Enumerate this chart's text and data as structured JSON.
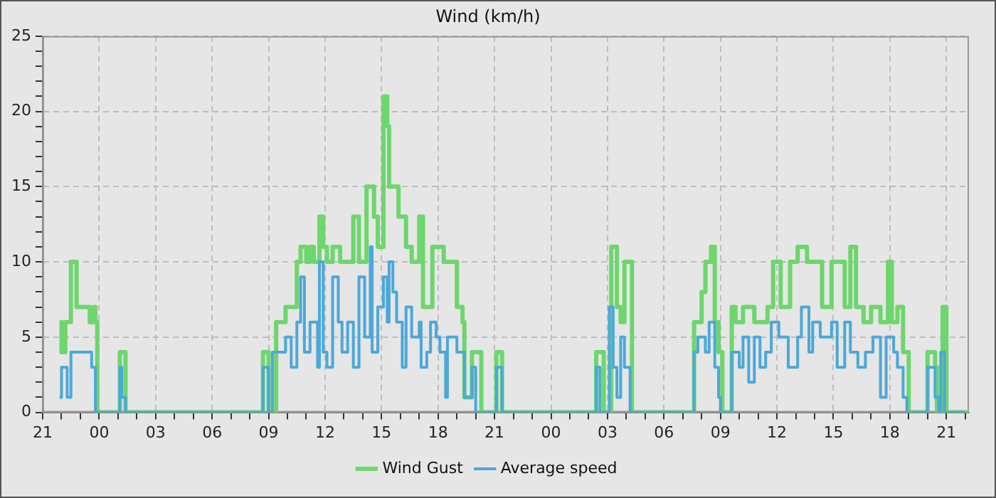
{
  "chart_data": {
    "type": "step",
    "title": "Wind (km/h)",
    "xlim": [
      "2000-01-01T21:00",
      "2000-01-03T22:12"
    ],
    "xticks": [
      {
        "value": "2000-01-01T21:00",
        "label": "21"
      },
      {
        "value": "2000-01-01T22:00",
        "label": null
      },
      {
        "value": "2000-01-01T23:00",
        "label": null
      },
      {
        "value": "2000-01-02T00:00",
        "label": "00"
      },
      {
        "value": "2000-01-02T01:00",
        "label": null
      },
      {
        "value": "2000-01-02T02:00",
        "label": null
      },
      {
        "value": "2000-01-02T03:00",
        "label": "03"
      },
      {
        "value": "2000-01-02T04:00",
        "label": null
      },
      {
        "value": "2000-01-02T05:00",
        "label": null
      },
      {
        "value": "2000-01-02T06:00",
        "label": "06"
      },
      {
        "value": "2000-01-02T07:00",
        "label": null
      },
      {
        "value": "2000-01-02T08:00",
        "label": null
      },
      {
        "value": "2000-01-02T09:00",
        "label": "09"
      },
      {
        "value": "2000-01-02T10:00",
        "label": null
      },
      {
        "value": "2000-01-02T11:00",
        "label": null
      },
      {
        "value": "2000-01-02T12:00",
        "label": "12"
      },
      {
        "value": "2000-01-02T13:00",
        "label": null
      },
      {
        "value": "2000-01-02T14:00",
        "label": null
      },
      {
        "value": "2000-01-02T15:00",
        "label": "15"
      },
      {
        "value": "2000-01-02T16:00",
        "label": null
      },
      {
        "value": "2000-01-02T17:00",
        "label": null
      },
      {
        "value": "2000-01-02T18:00",
        "label": "18"
      },
      {
        "value": "2000-01-02T19:00",
        "label": null
      },
      {
        "value": "2000-01-02T20:00",
        "label": null
      },
      {
        "value": "2000-01-02T21:00",
        "label": "21"
      },
      {
        "value": "2000-01-02T22:00",
        "label": null
      },
      {
        "value": "2000-01-02T23:00",
        "label": null
      },
      {
        "value": "2000-01-03T00:00",
        "label": "00"
      },
      {
        "value": "2000-01-03T01:00",
        "label": null
      },
      {
        "value": "2000-01-03T02:00",
        "label": null
      },
      {
        "value": "2000-01-03T03:00",
        "label": "03"
      },
      {
        "value": "2000-01-03T04:00",
        "label": null
      },
      {
        "value": "2000-01-03T05:00",
        "label": null
      },
      {
        "value": "2000-01-03T06:00",
        "label": "06"
      },
      {
        "value": "2000-01-03T07:00",
        "label": null
      },
      {
        "value": "2000-01-03T08:00",
        "label": null
      },
      {
        "value": "2000-01-03T09:00",
        "label": "09"
      },
      {
        "value": "2000-01-03T10:00",
        "label": null
      },
      {
        "value": "2000-01-03T11:00",
        "label": null
      },
      {
        "value": "2000-01-03T12:00",
        "label": "12"
      },
      {
        "value": "2000-01-03T13:00",
        "label": null
      },
      {
        "value": "2000-01-03T14:00",
        "label": null
      },
      {
        "value": "2000-01-03T15:00",
        "label": "15"
      },
      {
        "value": "2000-01-03T16:00",
        "label": null
      },
      {
        "value": "2000-01-03T17:00",
        "label": null
      },
      {
        "value": "2000-01-03T18:00",
        "label": "18"
      },
      {
        "value": "2000-01-03T19:00",
        "label": null
      },
      {
        "value": "2000-01-03T20:00",
        "label": null
      },
      {
        "value": "2000-01-03T21:00",
        "label": "21"
      },
      {
        "value": "2000-01-03T22:00",
        "label": null
      }
    ],
    "ylim": [
      0,
      25
    ],
    "yticks": [
      0,
      {
        "value": 1,
        "label": null
      },
      {
        "value": 2,
        "label": null
      },
      {
        "value": 3,
        "label": null
      },
      {
        "value": 4,
        "label": null
      },
      5,
      {
        "value": 6,
        "label": null
      },
      {
        "value": 7,
        "label": null
      },
      {
        "value": 8,
        "label": null
      },
      {
        "value": 9,
        "label": null
      },
      10,
      {
        "value": 11,
        "label": null
      },
      {
        "value": 12,
        "label": null
      },
      {
        "value": 13,
        "label": null
      },
      {
        "value": 14,
        "label": null
      },
      15,
      {
        "value": 16,
        "label": null
      },
      {
        "value": 17,
        "label": null
      },
      {
        "value": 18,
        "label": null
      },
      {
        "value": 19,
        "label": null
      },
      20,
      {
        "value": 21,
        "label": null
      },
      {
        "value": 22,
        "label": null
      },
      {
        "value": 23,
        "label": null
      },
      {
        "value": 24,
        "label": null
      },
      25
    ],
    "grid": true,
    "legend": "bottom",
    "line_style": "solid",
    "marker": "none",
    "series": [
      {
        "name": "Wind Gust",
        "color": "#6dd66d",
        "x": [
          "2000-01-01T21:54",
          "2000-01-01T22:00",
          "2000-01-01T22:12",
          "2000-01-01T22:30",
          "2000-01-01T22:48",
          "2000-01-01T23:30",
          "2000-01-01T23:42",
          "2000-01-01T23:48",
          "2000-01-01T23:54",
          "2000-01-02T01:06",
          "2000-01-02T01:24",
          "2000-01-02T08:42",
          "2000-01-02T09:00",
          "2000-01-02T09:24",
          "2000-01-02T09:54",
          "2000-01-02T10:30",
          "2000-01-02T10:42",
          "2000-01-02T11:00",
          "2000-01-02T11:12",
          "2000-01-02T11:24",
          "2000-01-02T11:42",
          "2000-01-02T11:54",
          "2000-01-02T12:06",
          "2000-01-02T12:24",
          "2000-01-02T12:48",
          "2000-01-02T13:30",
          "2000-01-02T13:48",
          "2000-01-02T14:12",
          "2000-01-02T14:36",
          "2000-01-02T14:48",
          "2000-01-02T15:06",
          "2000-01-02T15:18",
          "2000-01-02T15:24",
          "2000-01-02T15:54",
          "2000-01-02T16:18",
          "2000-01-02T16:36",
          "2000-01-02T17:00",
          "2000-01-02T17:12",
          "2000-01-02T17:42",
          "2000-01-02T18:18",
          "2000-01-02T19:00",
          "2000-01-02T19:18",
          "2000-01-02T19:24",
          "2000-01-02T19:48",
          "2000-01-02T20:18",
          "2000-01-02T21:06",
          "2000-01-02T21:24",
          "2000-01-03T02:24",
          "2000-01-03T02:48",
          "2000-01-03T03:12",
          "2000-01-03T03:30",
          "2000-01-03T03:42",
          "2000-01-03T03:54",
          "2000-01-03T04:18",
          "2000-01-03T07:36",
          "2000-01-03T08:00",
          "2000-01-03T08:12",
          "2000-01-03T08:30",
          "2000-01-03T08:42",
          "2000-01-03T08:54",
          "2000-01-03T09:06",
          "2000-01-03T09:36",
          "2000-01-03T09:48",
          "2000-01-03T10:12",
          "2000-01-03T10:48",
          "2000-01-03T11:30",
          "2000-01-03T11:48",
          "2000-01-03T12:12",
          "2000-01-03T12:42",
          "2000-01-03T13:06",
          "2000-01-03T13:36",
          "2000-01-03T14:24",
          "2000-01-03T14:54",
          "2000-01-03T15:36",
          "2000-01-03T15:54",
          "2000-01-03T16:12",
          "2000-01-03T16:36",
          "2000-01-03T17:00",
          "2000-01-03T17:30",
          "2000-01-03T17:54",
          "2000-01-03T18:06",
          "2000-01-03T18:24",
          "2000-01-03T18:42",
          "2000-01-03T19:00",
          "2000-01-03T20:00",
          "2000-01-03T20:24",
          "2000-01-03T20:30",
          "2000-01-03T20:48",
          "2000-01-03T21:00",
          "2000-01-03T22:12"
        ],
        "values": [
          6,
          4,
          6,
          10,
          7,
          6,
          7,
          6,
          0,
          4,
          0,
          4,
          0,
          6,
          7,
          10,
          11,
          10,
          11,
          10,
          13,
          11,
          10,
          11,
          10,
          13,
          10,
          15,
          13,
          11,
          21,
          19,
          15,
          13,
          11,
          10,
          13,
          7,
          11,
          10,
          7,
          6,
          1,
          4,
          0,
          4,
          0,
          4,
          0,
          11,
          7,
          6,
          10,
          0,
          6,
          8,
          10,
          11,
          6,
          4,
          0,
          7,
          6,
          7,
          6,
          7,
          10,
          7,
          10,
          11,
          10,
          7,
          10,
          7,
          11,
          7,
          6,
          7,
          6,
          10,
          6,
          7,
          4,
          0,
          4,
          3,
          0,
          7,
          0,
          0
        ]
      },
      {
        "name": "Average speed",
        "color": "#4ba8d9",
        "x": [
          "2000-01-01T21:54",
          "2000-01-01T22:00",
          "2000-01-01T22:18",
          "2000-01-01T22:30",
          "2000-01-01T23:36",
          "2000-01-01T23:48",
          "2000-01-02T01:06",
          "2000-01-02T01:12",
          "2000-01-02T01:24",
          "2000-01-02T08:42",
          "2000-01-02T09:00",
          "2000-01-02T09:12",
          "2000-01-02T09:54",
          "2000-01-02T10:12",
          "2000-01-02T10:30",
          "2000-01-02T10:42",
          "2000-01-02T10:54",
          "2000-01-02T11:12",
          "2000-01-02T11:36",
          "2000-01-02T11:42",
          "2000-01-02T11:54",
          "2000-01-02T12:06",
          "2000-01-02T12:24",
          "2000-01-02T12:42",
          "2000-01-02T12:54",
          "2000-01-02T13:12",
          "2000-01-02T13:30",
          "2000-01-02T13:48",
          "2000-01-02T14:06",
          "2000-01-02T14:24",
          "2000-01-02T14:30",
          "2000-01-02T14:48",
          "2000-01-02T15:06",
          "2000-01-02T15:18",
          "2000-01-02T15:24",
          "2000-01-02T15:36",
          "2000-01-02T15:48",
          "2000-01-02T16:06",
          "2000-01-02T16:18",
          "2000-01-02T16:36",
          "2000-01-02T17:00",
          "2000-01-02T17:06",
          "2000-01-02T17:24",
          "2000-01-02T17:36",
          "2000-01-02T17:54",
          "2000-01-02T18:06",
          "2000-01-02T18:24",
          "2000-01-02T18:30",
          "2000-01-02T19:00",
          "2000-01-02T19:24",
          "2000-01-02T19:48",
          "2000-01-02T20:00",
          "2000-01-02T21:06",
          "2000-01-02T21:24",
          "2000-01-03T02:24",
          "2000-01-03T02:36",
          "2000-01-03T03:06",
          "2000-01-03T03:18",
          "2000-01-03T03:30",
          "2000-01-03T03:42",
          "2000-01-03T03:54",
          "2000-01-03T04:12",
          "2000-01-03T07:36",
          "2000-01-03T07:48",
          "2000-01-03T08:12",
          "2000-01-03T08:24",
          "2000-01-03T08:42",
          "2000-01-03T08:54",
          "2000-01-03T09:00",
          "2000-01-03T09:36",
          "2000-01-03T10:00",
          "2000-01-03T10:12",
          "2000-01-03T10:30",
          "2000-01-03T10:48",
          "2000-01-03T11:06",
          "2000-01-03T11:24",
          "2000-01-03T11:42",
          "2000-01-03T12:06",
          "2000-01-03T12:36",
          "2000-01-03T13:06",
          "2000-01-03T13:18",
          "2000-01-03T13:42",
          "2000-01-03T13:54",
          "2000-01-03T14:18",
          "2000-01-03T14:54",
          "2000-01-03T15:12",
          "2000-01-03T15:36",
          "2000-01-03T15:54",
          "2000-01-03T16:18",
          "2000-01-03T16:42",
          "2000-01-03T17:06",
          "2000-01-03T17:30",
          "2000-01-03T17:48",
          "2000-01-03T18:12",
          "2000-01-03T18:24",
          "2000-01-03T18:42",
          "2000-01-03T18:54",
          "2000-01-03T20:00",
          "2000-01-03T20:24",
          "2000-01-03T20:36",
          "2000-01-03T20:42",
          "2000-01-03T20:54",
          "2000-01-03T22:00"
        ],
        "values": [
          1,
          3,
          1,
          4,
          3,
          0,
          3,
          1,
          0,
          3,
          0,
          4,
          5,
          3,
          6,
          9,
          4,
          6,
          3,
          10,
          4,
          3,
          9,
          6,
          4,
          6,
          3,
          9,
          5,
          11,
          4,
          7,
          9,
          6,
          10,
          8,
          6,
          3,
          7,
          5,
          6,
          3,
          4,
          6,
          5,
          4,
          1,
          5,
          4,
          1,
          3,
          0,
          3,
          0,
          3,
          0,
          7,
          3,
          1,
          5,
          3,
          0,
          4,
          5,
          4,
          6,
          3,
          1,
          0,
          4,
          3,
          5,
          2,
          5,
          3,
          4,
          6,
          5,
          3,
          5,
          7,
          4,
          6,
          5,
          6,
          3,
          6,
          4,
          3,
          4,
          5,
          1,
          5,
          4,
          3,
          1,
          0,
          3,
          1,
          0,
          4,
          0,
          0
        ]
      }
    ]
  }
}
